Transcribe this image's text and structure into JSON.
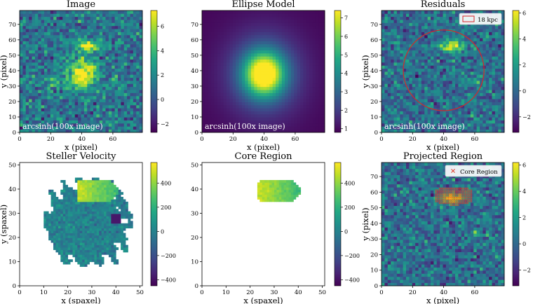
{
  "figure": {
    "colormap": "viridis"
  },
  "chart_data": [
    {
      "id": "image",
      "type": "heatmap",
      "title": "Image",
      "xlabel": "x (pixel)",
      "ylabel": "y (pixel)",
      "xlim": [
        0,
        79
      ],
      "ylim": [
        0,
        79
      ],
      "xticks": [
        0,
        20,
        40,
        60
      ],
      "yticks": [
        0,
        10,
        20,
        30,
        40,
        50,
        60,
        70
      ],
      "annotation": "arcsinh(100x image)",
      "colorbar": {
        "range": [
          -2.7,
          7.3
        ],
        "ticks": [
          -2,
          0,
          2,
          4,
          6
        ]
      },
      "sources": [
        {
          "name": "central galaxy",
          "x": 40,
          "y": 38,
          "peak": 6.8,
          "sx": 6,
          "sy": 7
        },
        {
          "name": "upper companion",
          "x": 45,
          "y": 56,
          "peak": 5.5,
          "sx": 6,
          "sy": 2.5
        },
        {
          "name": "right knot",
          "x": 61,
          "y": 34,
          "peak": 3.5,
          "sx": 2,
          "sy": 2
        },
        {
          "name": "left knot",
          "x": 22,
          "y": 34,
          "peak": 2.5,
          "sx": 2.5,
          "sy": 2.5
        }
      ]
    },
    {
      "id": "model",
      "type": "heatmap",
      "title": "Ellipse Model",
      "xlabel": "x (pixel)",
      "ylabel": "",
      "xlim": [
        0,
        79
      ],
      "ylim": [
        0,
        79
      ],
      "xticks": [
        0,
        20,
        40,
        60
      ],
      "yticks": [
        0,
        10,
        20,
        30,
        40,
        50,
        60,
        70
      ],
      "annotation": "arcsinh(100x image)",
      "colorbar": {
        "range": [
          0.8,
          7.4
        ],
        "ticks": [
          1,
          2,
          3,
          4,
          5,
          6,
          7
        ]
      },
      "model": {
        "x": 40,
        "y": 38,
        "peak": 7.0,
        "floor": 0.9,
        "sx": 9,
        "sy": 10
      }
    },
    {
      "id": "residuals",
      "type": "heatmap",
      "title": "Residuals",
      "xlabel": "x (pixel)",
      "ylabel": "y (pixel)",
      "xlim": [
        0,
        79
      ],
      "ylim": [
        0,
        79
      ],
      "xticks": [
        0,
        20,
        40,
        60
      ],
      "yticks": [
        0,
        10,
        20,
        30,
        40,
        50,
        60,
        70
      ],
      "annotation": "arcsinh(100x image)",
      "legend": "18 kpc",
      "circle": {
        "x": 40,
        "y": 40,
        "radius": 26
      },
      "colorbar": {
        "range": [
          -3.2,
          6.2
        ],
        "ticks": [
          -2,
          0,
          2,
          4,
          6
        ]
      },
      "sources": [
        {
          "name": "upper companion",
          "x": 45,
          "y": 56,
          "peak": 5.6,
          "sx": 6,
          "sy": 2.5
        },
        {
          "name": "right knot",
          "x": 61,
          "y": 34,
          "peak": 3.2,
          "sx": 2,
          "sy": 2
        }
      ]
    },
    {
      "id": "velocity",
      "type": "heatmap",
      "title": "Steller Velocity",
      "xlabel": "x (spaxel)",
      "ylabel": "y (spaxel)",
      "xlim": [
        0,
        51
      ],
      "ylim": [
        0,
        51
      ],
      "xticks": [
        0,
        10,
        20,
        30,
        40,
        50
      ],
      "yticks": [
        0,
        10,
        20,
        30,
        40,
        50
      ],
      "colorbar": {
        "range": [
          -450,
          570
        ],
        "ticks": [
          -400,
          -200,
          0,
          200,
          400
        ]
      },
      "map_extent": {
        "x": [
          10,
          47
        ],
        "y": [
          8,
          45
        ]
      },
      "core": {
        "x": [
          24,
          42
        ],
        "y": [
          35,
          44
        ],
        "value": 450
      },
      "background_value": 0
    },
    {
      "id": "core",
      "type": "heatmap",
      "title": "Core Region",
      "xlabel": "x (spaxel)",
      "ylabel": "",
      "xlim": [
        0,
        51
      ],
      "ylim": [
        0,
        51
      ],
      "xticks": [
        0,
        10,
        20,
        30,
        40,
        50
      ],
      "yticks": [
        0,
        10,
        20,
        30,
        40,
        50
      ],
      "colorbar": {
        "range": [
          -450,
          570
        ],
        "ticks": [
          -400,
          -200,
          0,
          200,
          400
        ]
      },
      "core": {
        "x": [
          23,
          42
        ],
        "y": [
          35,
          44
        ],
        "value": 450
      }
    },
    {
      "id": "projected",
      "type": "heatmap",
      "title": "Projected Region",
      "xlabel": "x (pixel)",
      "ylabel": "y (pixel)",
      "xlim": [
        0,
        79
      ],
      "ylim": [
        0,
        79
      ],
      "xticks": [
        0,
        20,
        40,
        60
      ],
      "yticks": [
        0,
        10,
        20,
        30,
        40,
        50,
        60,
        70
      ],
      "legend": "Core Region",
      "marker": "x",
      "marker_color": "#e03c28",
      "region": {
        "x": [
          35,
          58
        ],
        "y": [
          52,
          64
        ]
      },
      "colorbar": {
        "range": [
          -3.2,
          6.2
        ],
        "ticks": [
          -2,
          0,
          2,
          4,
          6
        ]
      },
      "sources": [
        {
          "name": "upper companion",
          "x": 45,
          "y": 56,
          "peak": 5.6,
          "sx": 6,
          "sy": 2.5
        },
        {
          "name": "right knot",
          "x": 61,
          "y": 34,
          "peak": 3.2,
          "sx": 2,
          "sy": 2
        }
      ]
    }
  ]
}
